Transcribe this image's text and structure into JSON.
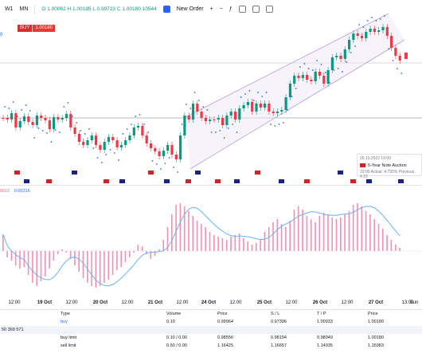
{
  "toolbar": {
    "intervals": [
      "W1",
      "MN"
    ],
    "ohlc": "O 1.00062  H 1.00185  L 0.99723  C 1.00180  10544",
    "new_order": "New Order",
    "plus": "+",
    "minus": "−"
  },
  "symbol_badge": {
    "side": "BUY",
    "price": "1.00180"
  },
  "left_label": "0",
  "macd_legend": {
    "v1": "0015",
    "v2": "0.00216"
  },
  "tooltip": {
    "date": "26.10.2022 19:00",
    "count": "1 events",
    "title": "5-Year Note Auction",
    "detail": "19:00  Actual: 4.795%  Previous: 4.22"
  },
  "x_axis": [
    {
      "t": "12:00",
      "b": false
    },
    {
      "t": "19 Oct",
      "b": true
    },
    {
      "t": "12:00",
      "b": false
    },
    {
      "t": "20 Oct",
      "b": true
    },
    {
      "t": "12:00",
      "b": false
    },
    {
      "t": "21 Oct",
      "b": true
    },
    {
      "t": "12:00",
      "b": false
    },
    {
      "t": "24 Oct",
      "b": true
    },
    {
      "t": "12:00",
      "b": false
    },
    {
      "t": "25 Oct",
      "b": true
    },
    {
      "t": "12:00",
      "b": false
    },
    {
      "t": "26 Oct",
      "b": true
    },
    {
      "t": "12:00",
      "b": false
    },
    {
      "t": "27 Oct",
      "b": true
    },
    {
      "t": "13:00",
      "b": false
    },
    {
      "t": "Sun",
      "b": false
    }
  ],
  "orders": {
    "header": {
      "type": "Type",
      "volume": "Volume",
      "price": "Price",
      "sl": "S / L",
      "tp": "T / P",
      "price2": "Price"
    },
    "rows": [
      {
        "type": "buy",
        "volume": "0.10",
        "price": "0.99964",
        "sl": "0.97396",
        "tp": "1.00933",
        "price2": "1.00180",
        "alt": false
      },
      {
        "type": "50 369 571",
        "volume": "",
        "price": "",
        "sl": "",
        "tp": "",
        "price2": "",
        "alt": true
      },
      {
        "type": "buy limit",
        "volume": "0.10 / 0.00",
        "price": "0.98556",
        "sl": "0.98194",
        "tp": "0.98949",
        "price2": "1.00180",
        "alt": false
      },
      {
        "type": "sell limit",
        "volume": "0.50 / 0.00",
        "price": "1.16425",
        "sl": "1.16657",
        "tp": "1.14935",
        "price2": "1.15983",
        "alt": false
      }
    ]
  },
  "colors": {
    "up": "#089981",
    "down": "#f23645",
    "psar": "#2962ff",
    "channel": "#b39ddb",
    "macd_hist": "#f48fb1",
    "macd_line": "#64b5f6"
  }
}
